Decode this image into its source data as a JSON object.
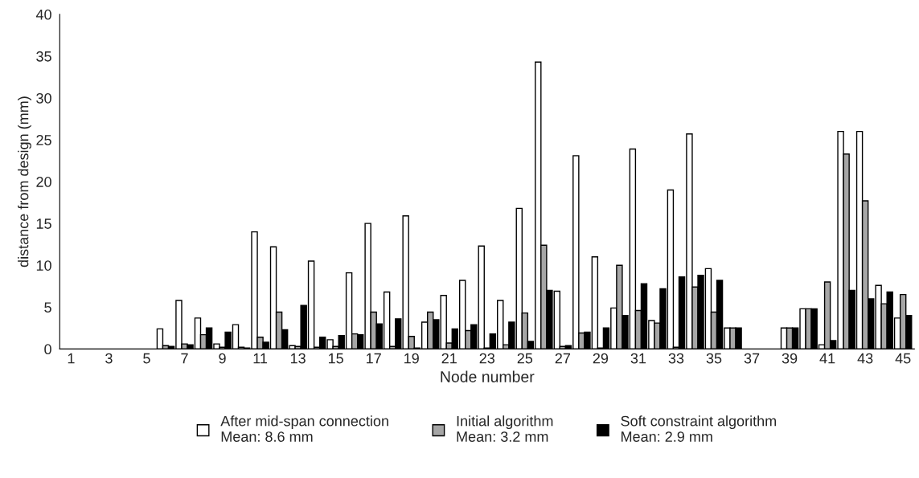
{
  "chart_data": {
    "type": "bar",
    "xlabel": "Node number",
    "ylabel": "distance from design (mm)",
    "categories": [
      "1",
      null,
      "3",
      null,
      "5",
      null,
      "7",
      null,
      "9",
      null,
      "11",
      null,
      "13",
      null,
      "15",
      null,
      "17",
      null,
      "19",
      null,
      "21",
      null,
      "23",
      null,
      "25",
      null,
      "27",
      null,
      "29",
      null,
      "31",
      null,
      "33",
      null,
      "35",
      null,
      "37",
      null,
      "39",
      null,
      "41",
      null,
      "43",
      null,
      "45"
    ],
    "series": [
      {
        "name": "After mid-span connection\nMean: 8.6 mm",
        "color": "#ffffff",
        "values": [
          null,
          null,
          null,
          null,
          null,
          2.4,
          5.8,
          3.7,
          0.6,
          2.9,
          14.0,
          12.2,
          0.4,
          10.5,
          1.1,
          9.1,
          15.0,
          6.8,
          15.9,
          3.2,
          6.4,
          8.2,
          12.3,
          5.8,
          16.8,
          34.3,
          6.9,
          23.1,
          11.0,
          4.9,
          23.9,
          3.4,
          19.0,
          25.7,
          9.6,
          2.5,
          null,
          null,
          2.5,
          4.8,
          0.5,
          26.0,
          26.0,
          7.6,
          3.7
        ]
      },
      {
        "name": "Initial algorithm\nMean: 3.2 mm",
        "color": "#a6a6a6",
        "values": [
          null,
          null,
          null,
          null,
          null,
          0.4,
          0.6,
          1.7,
          0.2,
          0.2,
          1.4,
          4.4,
          0.3,
          0.2,
          0.3,
          1.8,
          4.4,
          0.3,
          1.5,
          4.4,
          0.7,
          2.2,
          0.1,
          0.5,
          4.3,
          12.4,
          0.3,
          1.9,
          0.1,
          10.0,
          4.6,
          3.1,
          0.2,
          7.4,
          4.4,
          2.5,
          null,
          null,
          2.5,
          4.8,
          8.0,
          23.3,
          17.7,
          5.4,
          6.5
        ]
      },
      {
        "name": "Soft constraint algorithm\nMean: 2.9 mm",
        "color": "#000000",
        "values": [
          null,
          null,
          null,
          null,
          null,
          0.3,
          0.5,
          2.5,
          2.0,
          0.1,
          0.8,
          2.3,
          5.2,
          1.4,
          1.6,
          1.7,
          3.0,
          3.6,
          0.1,
          3.5,
          2.4,
          2.9,
          1.8,
          3.2,
          0.9,
          7.0,
          0.4,
          2.0,
          2.5,
          4.0,
          7.8,
          7.2,
          8.6,
          8.8,
          8.2,
          2.5,
          null,
          null,
          2.5,
          4.8,
          1.0,
          7.0,
          6.0,
          6.8,
          4.0
        ]
      }
    ],
    "ylim": [
      0,
      40
    ],
    "yticks": [
      0,
      5,
      10,
      15,
      20,
      25,
      30,
      35,
      40
    ],
    "legend": "bottom"
  }
}
